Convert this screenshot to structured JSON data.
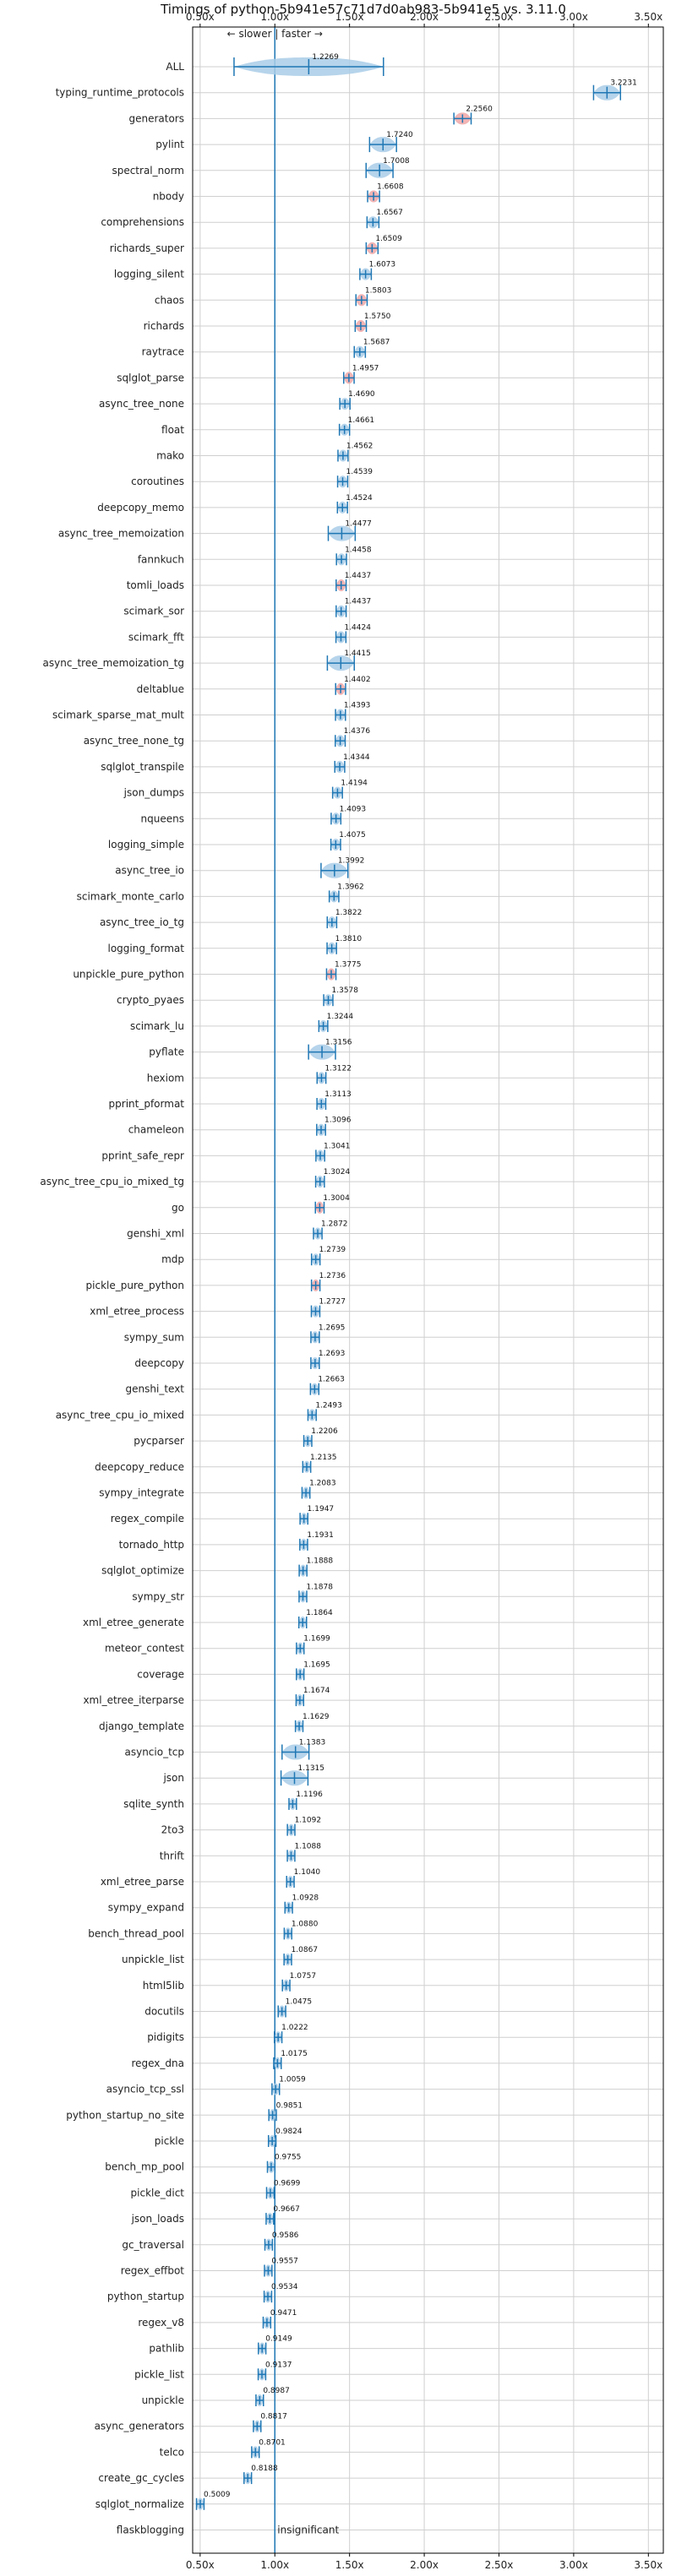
{
  "chart_data": {
    "type": "violin",
    "title": "Timings of python-5b941e57c71d7d0ab983-5b941e5 vs. 3.11.0",
    "hint": "← slower | faster →",
    "x_ticks": [
      "0.50x",
      "1.00x",
      "1.50x",
      "2.00x",
      "2.50x",
      "3.00x",
      "3.50x"
    ],
    "x_tick_values": [
      0.5,
      1.0,
      1.5,
      2.0,
      2.5,
      3.0,
      3.5
    ],
    "xlim": [
      0.45,
      3.6
    ],
    "grid": true,
    "reference_line": 1.0,
    "colors": {
      "violin": "#a9cde8",
      "significant_violin": "#f0a7a7",
      "line": "#1f77b4",
      "grid": "#cfcfcf"
    },
    "insignificant_label": "insignificant",
    "benchmarks": [
      {
        "name": "ALL",
        "value": 1.2269,
        "label": "1.2269"
      },
      {
        "name": "typing_runtime_protocols",
        "value": 3.2231,
        "label": "3.2231"
      },
      {
        "name": "generators",
        "value": 2.256,
        "label": "2.2560",
        "significant": true
      },
      {
        "name": "pylint",
        "value": 1.724,
        "label": "1.7240"
      },
      {
        "name": "spectral_norm",
        "value": 1.7008,
        "label": "1.7008"
      },
      {
        "name": "nbody",
        "value": 1.6608,
        "label": "1.6608",
        "significant": true
      },
      {
        "name": "comprehensions",
        "value": 1.6567,
        "label": "1.6567"
      },
      {
        "name": "richards_super",
        "value": 1.6509,
        "label": "1.6509",
        "significant": true
      },
      {
        "name": "logging_silent",
        "value": 1.6073,
        "label": "1.6073"
      },
      {
        "name": "chaos",
        "value": 1.5803,
        "label": "1.5803",
        "significant": true
      },
      {
        "name": "richards",
        "value": 1.575,
        "label": "1.5750",
        "significant": true
      },
      {
        "name": "raytrace",
        "value": 1.5687,
        "label": "1.5687"
      },
      {
        "name": "sqlglot_parse",
        "value": 1.4957,
        "label": "1.4957",
        "significant": true
      },
      {
        "name": "async_tree_none",
        "value": 1.469,
        "label": "1.4690"
      },
      {
        "name": "float",
        "value": 1.4661,
        "label": "1.4661"
      },
      {
        "name": "mako",
        "value": 1.4562,
        "label": "1.4562"
      },
      {
        "name": "coroutines",
        "value": 1.4539,
        "label": "1.4539"
      },
      {
        "name": "deepcopy_memo",
        "value": 1.4524,
        "label": "1.4524"
      },
      {
        "name": "async_tree_memoization",
        "value": 1.4477,
        "label": "1.4477"
      },
      {
        "name": "fannkuch",
        "value": 1.4458,
        "label": "1.4458"
      },
      {
        "name": "tomli_loads",
        "value": 1.4437,
        "label": "1.4437",
        "significant": true
      },
      {
        "name": "scimark_sor",
        "value": 1.4437,
        "label": "1.4437"
      },
      {
        "name": "scimark_fft",
        "value": 1.4424,
        "label": "1.4424"
      },
      {
        "name": "async_tree_memoization_tg",
        "value": 1.4415,
        "label": "1.4415"
      },
      {
        "name": "deltablue",
        "value": 1.4402,
        "label": "1.4402",
        "significant": true
      },
      {
        "name": "scimark_sparse_mat_mult",
        "value": 1.4393,
        "label": "1.4393"
      },
      {
        "name": "async_tree_none_tg",
        "value": 1.4376,
        "label": "1.4376"
      },
      {
        "name": "sqlglot_transpile",
        "value": 1.4344,
        "label": "1.4344"
      },
      {
        "name": "json_dumps",
        "value": 1.4194,
        "label": "1.4194"
      },
      {
        "name": "nqueens",
        "value": 1.4093,
        "label": "1.4093"
      },
      {
        "name": "logging_simple",
        "value": 1.4075,
        "label": "1.4075"
      },
      {
        "name": "async_tree_io",
        "value": 1.3992,
        "label": "1.3992"
      },
      {
        "name": "scimark_monte_carlo",
        "value": 1.3962,
        "label": "1.3962"
      },
      {
        "name": "async_tree_io_tg",
        "value": 1.3822,
        "label": "1.3822"
      },
      {
        "name": "logging_format",
        "value": 1.381,
        "label": "1.3810"
      },
      {
        "name": "unpickle_pure_python",
        "value": 1.3775,
        "label": "1.3775",
        "significant": true
      },
      {
        "name": "crypto_pyaes",
        "value": 1.3578,
        "label": "1.3578"
      },
      {
        "name": "scimark_lu",
        "value": 1.3244,
        "label": "1.3244"
      },
      {
        "name": "pyflate",
        "value": 1.3156,
        "label": "1.3156"
      },
      {
        "name": "hexiom",
        "value": 1.3122,
        "label": "1.3122"
      },
      {
        "name": "pprint_pformat",
        "value": 1.3113,
        "label": "1.3113"
      },
      {
        "name": "chameleon",
        "value": 1.3096,
        "label": "1.3096"
      },
      {
        "name": "pprint_safe_repr",
        "value": 1.3041,
        "label": "1.3041"
      },
      {
        "name": "async_tree_cpu_io_mixed_tg",
        "value": 1.3024,
        "label": "1.3024"
      },
      {
        "name": "go",
        "value": 1.3004,
        "label": "1.3004",
        "significant": true
      },
      {
        "name": "genshi_xml",
        "value": 1.2872,
        "label": "1.2872"
      },
      {
        "name": "mdp",
        "value": 1.2739,
        "label": "1.2739"
      },
      {
        "name": "pickle_pure_python",
        "value": 1.2736,
        "label": "1.2736",
        "significant": true
      },
      {
        "name": "xml_etree_process",
        "value": 1.2727,
        "label": "1.2727"
      },
      {
        "name": "sympy_sum",
        "value": 1.2695,
        "label": "1.2695"
      },
      {
        "name": "deepcopy",
        "value": 1.2693,
        "label": "1.2693"
      },
      {
        "name": "genshi_text",
        "value": 1.2663,
        "label": "1.2663"
      },
      {
        "name": "async_tree_cpu_io_mixed",
        "value": 1.2493,
        "label": "1.2493"
      },
      {
        "name": "pycparser",
        "value": 1.2206,
        "label": "1.2206"
      },
      {
        "name": "deepcopy_reduce",
        "value": 1.2135,
        "label": "1.2135"
      },
      {
        "name": "sympy_integrate",
        "value": 1.2083,
        "label": "1.2083"
      },
      {
        "name": "regex_compile",
        "value": 1.1947,
        "label": "1.1947"
      },
      {
        "name": "tornado_http",
        "value": 1.1931,
        "label": "1.1931"
      },
      {
        "name": "sqlglot_optimize",
        "value": 1.1888,
        "label": "1.1888"
      },
      {
        "name": "sympy_str",
        "value": 1.1878,
        "label": "1.1878"
      },
      {
        "name": "xml_etree_generate",
        "value": 1.1864,
        "label": "1.1864"
      },
      {
        "name": "meteor_contest",
        "value": 1.1699,
        "label": "1.1699"
      },
      {
        "name": "coverage",
        "value": 1.1695,
        "label": "1.1695"
      },
      {
        "name": "xml_etree_iterparse",
        "value": 1.1674,
        "label": "1.1674"
      },
      {
        "name": "django_template",
        "value": 1.1629,
        "label": "1.1629"
      },
      {
        "name": "asyncio_tcp",
        "value": 1.1383,
        "label": "1.1383"
      },
      {
        "name": "json",
        "value": 1.1315,
        "label": "1.1315"
      },
      {
        "name": "sqlite_synth",
        "value": 1.1196,
        "label": "1.1196"
      },
      {
        "name": "2to3",
        "value": 1.1092,
        "label": "1.1092"
      },
      {
        "name": "thrift",
        "value": 1.1088,
        "label": "1.1088"
      },
      {
        "name": "xml_etree_parse",
        "value": 1.104,
        "label": "1.1040"
      },
      {
        "name": "sympy_expand",
        "value": 1.0928,
        "label": "1.0928"
      },
      {
        "name": "bench_thread_pool",
        "value": 1.088,
        "label": "1.0880"
      },
      {
        "name": "unpickle_list",
        "value": 1.0867,
        "label": "1.0867"
      },
      {
        "name": "html5lib",
        "value": 1.0757,
        "label": "1.0757"
      },
      {
        "name": "docutils",
        "value": 1.0475,
        "label": "1.0475"
      },
      {
        "name": "pidigits",
        "value": 1.0222,
        "label": "1.0222"
      },
      {
        "name": "regex_dna",
        "value": 1.0175,
        "label": "1.0175"
      },
      {
        "name": "asyncio_tcp_ssl",
        "value": 1.0059,
        "label": "1.0059"
      },
      {
        "name": "python_startup_no_site",
        "value": 0.9851,
        "label": "0.9851"
      },
      {
        "name": "pickle",
        "value": 0.9824,
        "label": "0.9824"
      },
      {
        "name": "bench_mp_pool",
        "value": 0.9755,
        "label": "0.9755"
      },
      {
        "name": "pickle_dict",
        "value": 0.9699,
        "label": "0.9699"
      },
      {
        "name": "json_loads",
        "value": 0.9667,
        "label": "0.9667"
      },
      {
        "name": "gc_traversal",
        "value": 0.9586,
        "label": "0.9586"
      },
      {
        "name": "regex_effbot",
        "value": 0.9557,
        "label": "0.9557"
      },
      {
        "name": "python_startup",
        "value": 0.9534,
        "label": "0.9534"
      },
      {
        "name": "regex_v8",
        "value": 0.9471,
        "label": "0.9471"
      },
      {
        "name": "pathlib",
        "value": 0.9149,
        "label": "0.9149"
      },
      {
        "name": "pickle_list",
        "value": 0.9137,
        "label": "0.9137"
      },
      {
        "name": "unpickle",
        "value": 0.8987,
        "label": "0.8987"
      },
      {
        "name": "async_generators",
        "value": 0.8817,
        "label": "0.8817"
      },
      {
        "name": "telco",
        "value": 0.8701,
        "label": "0.8701"
      },
      {
        "name": "create_gc_cycles",
        "value": 0.8188,
        "label": "0.8188"
      },
      {
        "name": "sqlglot_normalize",
        "value": 0.5009,
        "label": "0.5009"
      },
      {
        "name": "flaskblogging",
        "value": 1.0,
        "label": "",
        "insignificant": true
      }
    ]
  }
}
